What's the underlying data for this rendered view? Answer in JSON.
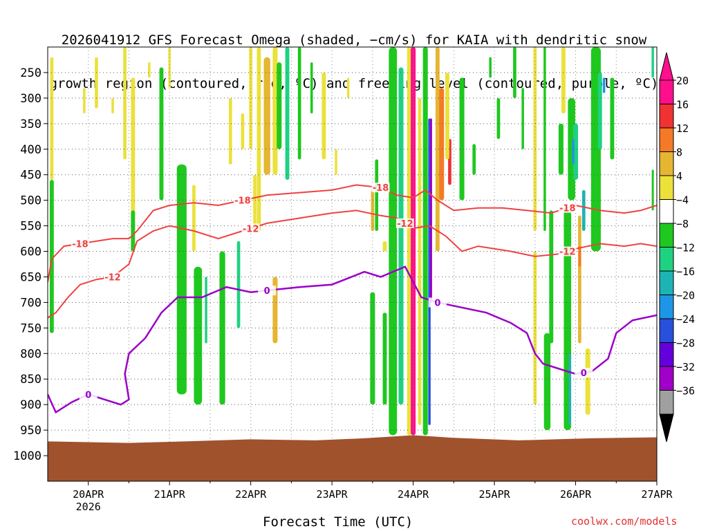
{
  "chart_data": {
    "type": "heatmap",
    "title_line1": "2026041912 GFS Forecast Omega (shaded, −cm/s) for KAIA with dendritic snow",
    "title_line2": "growth region (contoured, red, ºC) and freezing level (contoured, purple, ºC)",
    "xlabel": "Forecast Time (UTC)",
    "ylabel": "",
    "x_ticks": [
      "20APR",
      "21APR",
      "22APR",
      "23APR",
      "24APR",
      "25APR",
      "26APR",
      "27APR"
    ],
    "x_year": "2026",
    "x_range_days": [
      19.5,
      27.0
    ],
    "y_ticks": [
      "250",
      "300",
      "350",
      "400",
      "450",
      "500",
      "550",
      "600",
      "650",
      "700",
      "750",
      "800",
      "850",
      "900",
      "950",
      "1000"
    ],
    "y_range_hpa": [
      200,
      1050
    ],
    "colorbar_labels": [
      "20",
      "16",
      "12",
      "8",
      "4",
      "−4",
      "−8",
      "−12",
      "−16",
      "−20",
      "−24",
      "−28",
      "−32",
      "−36"
    ],
    "colors": {
      "c20": "#ff0f8c",
      "c16": "#f03232",
      "c12": "#f57a28",
      "c8": "#e6b632",
      "c4": "#ebe13a",
      "white": "#ffffff",
      "m4": "#1ec81e",
      "m8": "#1ed282",
      "m12": "#1eb4b4",
      "m16": "#1e96e6",
      "m20": "#2850dc",
      "m24": "#6400dc",
      "m28": "#a000c8",
      "m32": "#a0a0a0",
      "m36": "#000000",
      "ground": "#a0522d",
      "dgz": "#f04040",
      "freeze": "#9a00c8"
    },
    "series": [
      {
        "name": "DGZ top (-18)",
        "label": "-18",
        "label_day": [
          19.9,
          21.9,
          23.6,
          25.9
        ],
        "x": [
          19.5,
          19.55,
          19.7,
          19.9,
          20.1,
          20.3,
          20.5,
          20.6,
          20.8,
          21.0,
          21.3,
          21.6,
          21.9,
          22.2,
          22.6,
          23.0,
          23.3,
          23.6,
          23.8,
          24.0,
          24.15,
          24.3,
          24.5,
          24.8,
          25.1,
          25.4,
          25.7,
          26.0,
          26.3,
          26.6,
          26.8,
          27.0
        ],
        "values": [
          660,
          615,
          590,
          585,
          580,
          575,
          575,
          560,
          520,
          510,
          505,
          510,
          500,
          490,
          485,
          480,
          470,
          475,
          490,
          495,
          480,
          500,
          520,
          515,
          515,
          520,
          525,
          510,
          520,
          525,
          520,
          510
        ]
      },
      {
        "name": "DGZ bottom (-12)",
        "label": "-12",
        "label_day": [
          20.3,
          22.0,
          23.9,
          25.9
        ],
        "x": [
          19.5,
          19.6,
          19.75,
          19.9,
          20.1,
          20.3,
          20.5,
          20.6,
          20.8,
          21.0,
          21.3,
          21.6,
          21.9,
          22.2,
          22.6,
          23.0,
          23.3,
          23.6,
          23.8,
          24.0,
          24.2,
          24.4,
          24.6,
          24.8,
          25.2,
          25.5,
          25.8,
          26.0,
          26.3,
          26.6,
          26.8,
          27.0
        ],
        "values": [
          730,
          720,
          690,
          665,
          655,
          650,
          625,
          580,
          560,
          550,
          560,
          575,
          560,
          545,
          535,
          525,
          520,
          530,
          535,
          555,
          550,
          570,
          600,
          590,
          600,
          610,
          605,
          595,
          585,
          590,
          585,
          590
        ]
      },
      {
        "name": "Freezing level (0)",
        "label": "0",
        "label_day": [
          20.0,
          22.2,
          24.3,
          26.1
        ],
        "x": [
          19.5,
          19.6,
          19.8,
          20.0,
          20.2,
          20.4,
          20.5,
          20.45,
          20.5,
          20.7,
          20.9,
          21.1,
          21.4,
          21.7,
          22.0,
          22.3,
          22.6,
          23.0,
          23.4,
          23.6,
          23.9,
          24.1,
          24.3,
          24.6,
          24.9,
          25.2,
          25.4,
          25.5,
          25.6,
          25.8,
          26.0,
          26.2,
          26.4,
          26.5,
          26.7,
          27.0
        ],
        "values": [
          880,
          915,
          895,
          880,
          890,
          900,
          890,
          840,
          800,
          770,
          720,
          690,
          690,
          670,
          680,
          675,
          670,
          665,
          640,
          650,
          630,
          690,
          700,
          710,
          720,
          740,
          760,
          800,
          820,
          830,
          840,
          835,
          810,
          760,
          735,
          725
        ]
      }
    ],
    "credit": "coolwx.com/models"
  }
}
